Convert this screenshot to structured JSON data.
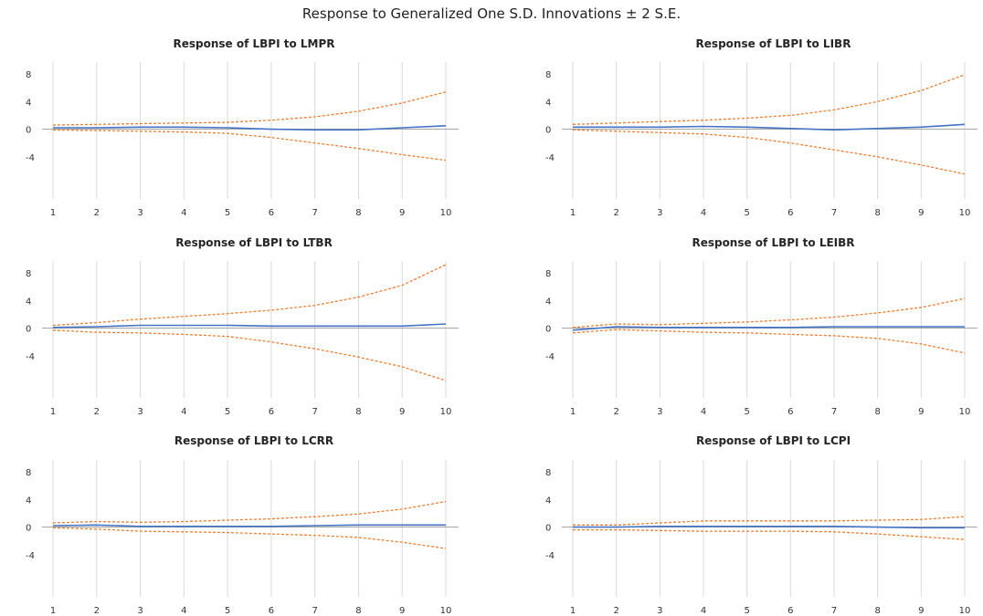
{
  "title": "Response to Generalized One S.D. Innovations ± 2 S.E.",
  "colors": {
    "response": "#4472c4",
    "band": "#ed7d31",
    "grid": "#d9d9d9",
    "zero": "#a6a6a6"
  },
  "chart_data": [
    {
      "type": "line",
      "title": "Response of LBPI to LMPR",
      "x": [
        1,
        2,
        3,
        4,
        5,
        6,
        7,
        8,
        9,
        10
      ],
      "xticks": [
        "1",
        "2",
        "3",
        "4",
        "5",
        "6",
        "7",
        "8",
        "9",
        "10"
      ],
      "yticks": [
        "8",
        "4",
        "0",
        "-4"
      ],
      "ylim": [
        -8,
        10
      ],
      "grid": true,
      "series": [
        {
          "values": [
            0.2,
            0.2,
            0.3,
            0.3,
            0.2,
            0,
            -0.1,
            -0.1,
            0.2,
            0.5
          ]
        },
        {
          "values": [
            0.6,
            0.7,
            0.8,
            0.9,
            1.0,
            1.3,
            1.8,
            2.6,
            3.8,
            5.4
          ]
        },
        {
          "values": [
            -0.1,
            -0.2,
            -0.3,
            -0.4,
            -0.6,
            -1.2,
            -2.0,
            -2.8,
            -3.7,
            -4.5
          ]
        }
      ]
    },
    {
      "type": "line",
      "title": "Response of LBPI to LIBR",
      "x": [
        1,
        2,
        3,
        4,
        5,
        6,
        7,
        8,
        9,
        10
      ],
      "xticks": [
        "1",
        "2",
        "3",
        "4",
        "5",
        "6",
        "7",
        "8",
        "9",
        "10"
      ],
      "yticks": [
        "8",
        "4",
        "0",
        "-4"
      ],
      "ylim": [
        -8,
        10
      ],
      "grid": true,
      "series": [
        {
          "values": [
            0.3,
            0.3,
            0.3,
            0.4,
            0.3,
            0.1,
            -0.1,
            0.1,
            0.3,
            0.7
          ]
        },
        {
          "values": [
            0.7,
            0.9,
            1.1,
            1.3,
            1.6,
            2.0,
            2.8,
            4.0,
            5.6,
            7.9
          ]
        },
        {
          "values": [
            -0.1,
            -0.3,
            -0.5,
            -0.7,
            -1.2,
            -2.0,
            -3.0,
            -4.0,
            -5.2,
            -6.5
          ]
        }
      ]
    },
    {
      "type": "line",
      "title": "Response of LBPI to LTBR",
      "x": [
        1,
        2,
        3,
        4,
        5,
        6,
        7,
        8,
        9,
        10
      ],
      "xticks": [
        "1",
        "2",
        "3",
        "4",
        "5",
        "6",
        "7",
        "8",
        "9",
        "10"
      ],
      "yticks": [
        "8",
        "4",
        "0",
        "-4"
      ],
      "ylim": [
        -8,
        10
      ],
      "grid": true,
      "series": [
        {
          "values": [
            0.1,
            0.2,
            0.4,
            0.4,
            0.4,
            0.3,
            0.3,
            0.3,
            0.3,
            0.6
          ]
        },
        {
          "values": [
            0.4,
            0.8,
            1.3,
            1.7,
            2.1,
            2.6,
            3.3,
            4.5,
            6.2,
            9.2
          ]
        },
        {
          "values": [
            -0.3,
            -0.6,
            -0.7,
            -0.9,
            -1.2,
            -2.0,
            -3.0,
            -4.2,
            -5.6,
            -7.6
          ]
        }
      ]
    },
    {
      "type": "line",
      "title": "Response of LBPI to LEIBR",
      "x": [
        1,
        2,
        3,
        4,
        5,
        6,
        7,
        8,
        9,
        10
      ],
      "xticks": [
        "1",
        "2",
        "3",
        "4",
        "5",
        "6",
        "7",
        "8",
        "9",
        "10"
      ],
      "yticks": [
        "8",
        "4",
        "0",
        "-4"
      ],
      "ylim": [
        -8,
        10
      ],
      "grid": true,
      "series": [
        {
          "values": [
            -0.3,
            0.2,
            0.1,
            0.1,
            0.1,
            0.1,
            0.2,
            0.2,
            0.2,
            0.2
          ]
        },
        {
          "values": [
            0.1,
            0.6,
            0.5,
            0.7,
            0.9,
            1.2,
            1.6,
            2.2,
            3.0,
            4.3
          ]
        },
        {
          "values": [
            -0.7,
            -0.2,
            -0.4,
            -0.6,
            -0.7,
            -0.9,
            -1.1,
            -1.5,
            -2.3,
            -3.6
          ]
        }
      ]
    },
    {
      "type": "line",
      "title": "Response of LBPI to LCRR",
      "x": [
        1,
        2,
        3,
        4,
        5,
        6,
        7,
        8,
        9,
        10
      ],
      "xticks": [
        "1",
        "2",
        "3",
        "4",
        "5",
        "6",
        "7",
        "8",
        "9",
        "10"
      ],
      "yticks": [
        "8",
        "4",
        "0",
        "-4"
      ],
      "ylim": [
        -8,
        10
      ],
      "grid": true,
      "series": [
        {
          "values": [
            0.2,
            0.3,
            0.1,
            0.1,
            0.1,
            0.1,
            0.2,
            0.3,
            0.3,
            0.3
          ]
        },
        {
          "values": [
            0.6,
            0.8,
            0.7,
            0.8,
            1.0,
            1.2,
            1.5,
            1.9,
            2.6,
            3.7
          ]
        },
        {
          "values": [
            -0.1,
            -0.3,
            -0.6,
            -0.7,
            -0.8,
            -1.0,
            -1.2,
            -1.5,
            -2.2,
            -3.1
          ]
        }
      ]
    },
    {
      "type": "line",
      "title": "Response of LBPI to LCPI",
      "x": [
        1,
        2,
        3,
        4,
        5,
        6,
        7,
        8,
        9,
        10
      ],
      "xticks": [
        "1",
        "2",
        "3",
        "4",
        "5",
        "6",
        "7",
        "8",
        "9",
        "10"
      ],
      "yticks": [
        "8",
        "4",
        "0",
        "-4"
      ],
      "ylim": [
        -8,
        10
      ],
      "grid": true,
      "series": [
        {
          "values": [
            0,
            0,
            0.1,
            0.1,
            0.1,
            0.1,
            0.1,
            0,
            -0.1,
            -0.1
          ]
        },
        {
          "values": [
            0.3,
            0.3,
            0.6,
            0.9,
            0.9,
            0.9,
            0.9,
            1.0,
            1.1,
            1.5
          ]
        },
        {
          "values": [
            -0.4,
            -0.4,
            -0.5,
            -0.6,
            -0.6,
            -0.6,
            -0.7,
            -1.0,
            -1.4,
            -1.8
          ]
        }
      ]
    }
  ]
}
